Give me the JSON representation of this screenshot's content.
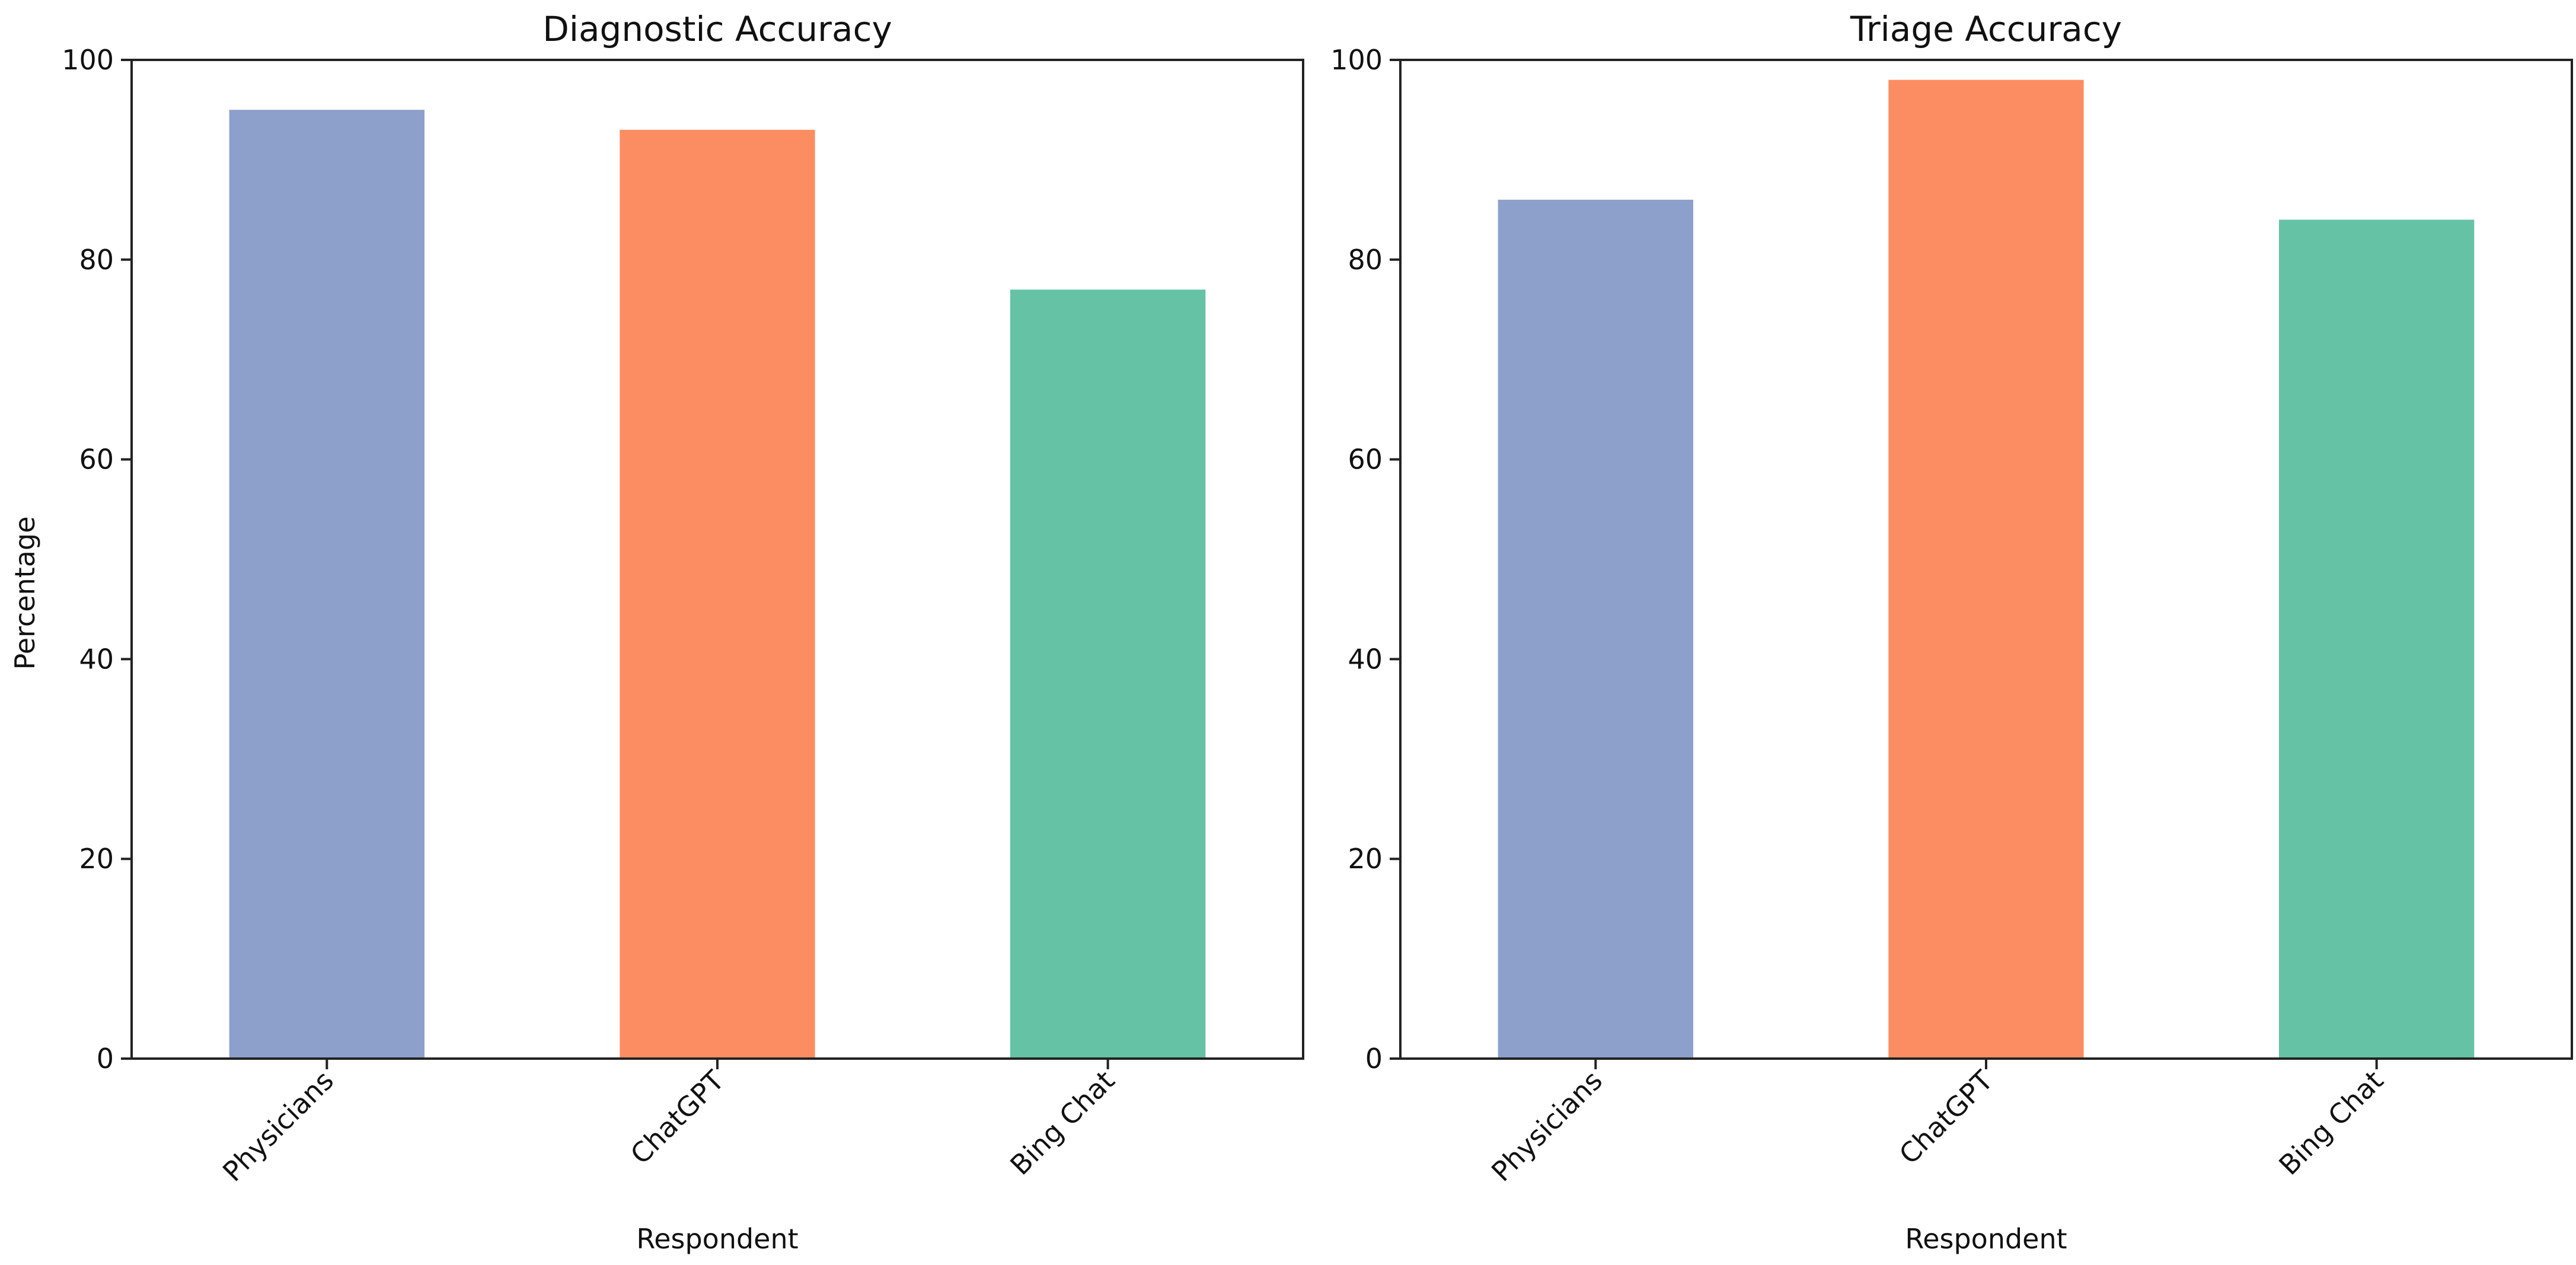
{
  "chart_data": [
    {
      "type": "bar",
      "title": "Diagnostic Accuracy",
      "xlabel": "Respondent",
      "ylabel": "Percentage",
      "categories": [
        "Physicians",
        "ChatGPT",
        "Bing Chat"
      ],
      "values": [
        95,
        93,
        77
      ],
      "colors": [
        "#8da0cb",
        "#fc8d62",
        "#66c2a5"
      ],
      "ylim": [
        0,
        100
      ],
      "yticks": [
        0,
        20,
        40,
        60,
        80,
        100
      ],
      "grid": false,
      "legend": "none"
    },
    {
      "type": "bar",
      "title": "Triage Accuracy",
      "xlabel": "Respondent",
      "ylabel": "",
      "categories": [
        "Physicians",
        "ChatGPT",
        "Bing Chat"
      ],
      "values": [
        86,
        98,
        84
      ],
      "colors": [
        "#8da0cb",
        "#fc8d62",
        "#66c2a5"
      ],
      "ylim": [
        0,
        100
      ],
      "yticks": [
        0,
        20,
        40,
        60,
        80,
        100
      ],
      "grid": false,
      "legend": "none"
    }
  ]
}
